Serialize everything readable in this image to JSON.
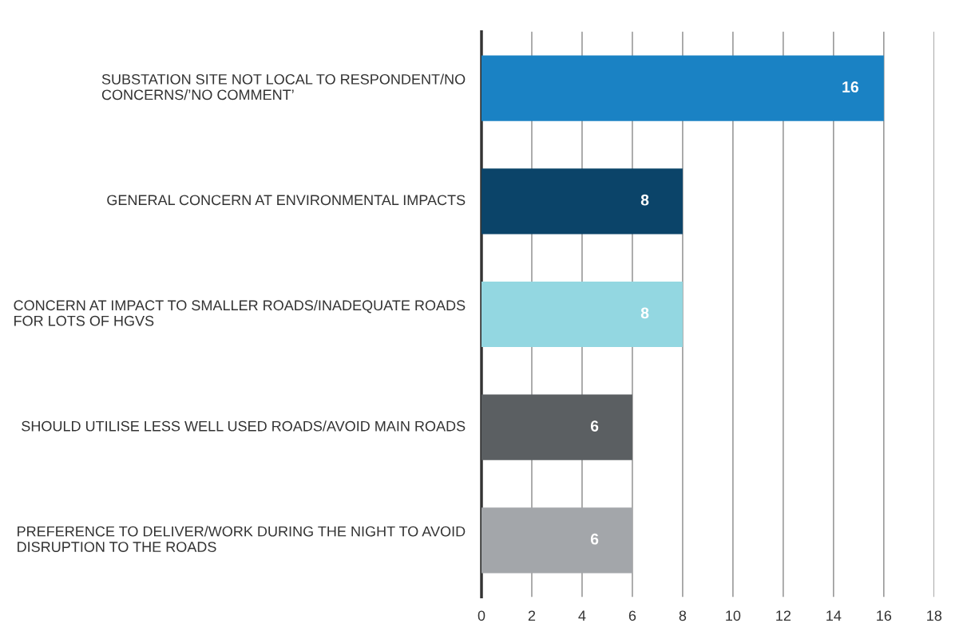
{
  "chart_data": {
    "type": "bar",
    "orientation": "horizontal",
    "categories": [
      "SUBSTATION SITE NOT LOCAL TO RESPONDENT/NO CONCERNS/’NO COMMENT’",
      "GENERAL CONCERN AT ENVIRONMENTAL IMPACTS",
      "CONCERN AT IMPACT TO SMALLER ROADS/INADEQUATE ROADS FOR LOTS OF HGVS",
      "SHOULD UTILISE LESS WELL USED ROADS/AVOID MAIN ROADS",
      "PREFERENCE TO DELIVER/WORK DURING THE NIGHT TO AVOID DISRUPTION TO THE ROADS"
    ],
    "values": [
      16,
      8,
      8,
      6,
      6
    ],
    "colors": [
      "#1a82c4",
      "#0b4469",
      "#93d7e1",
      "#5b5f62",
      "#a3a6aa"
    ],
    "xlim": [
      0,
      18
    ],
    "xticks": [
      0,
      2,
      4,
      6,
      8,
      10,
      12,
      14,
      16,
      18
    ],
    "grid": "x",
    "data_labels": true
  }
}
